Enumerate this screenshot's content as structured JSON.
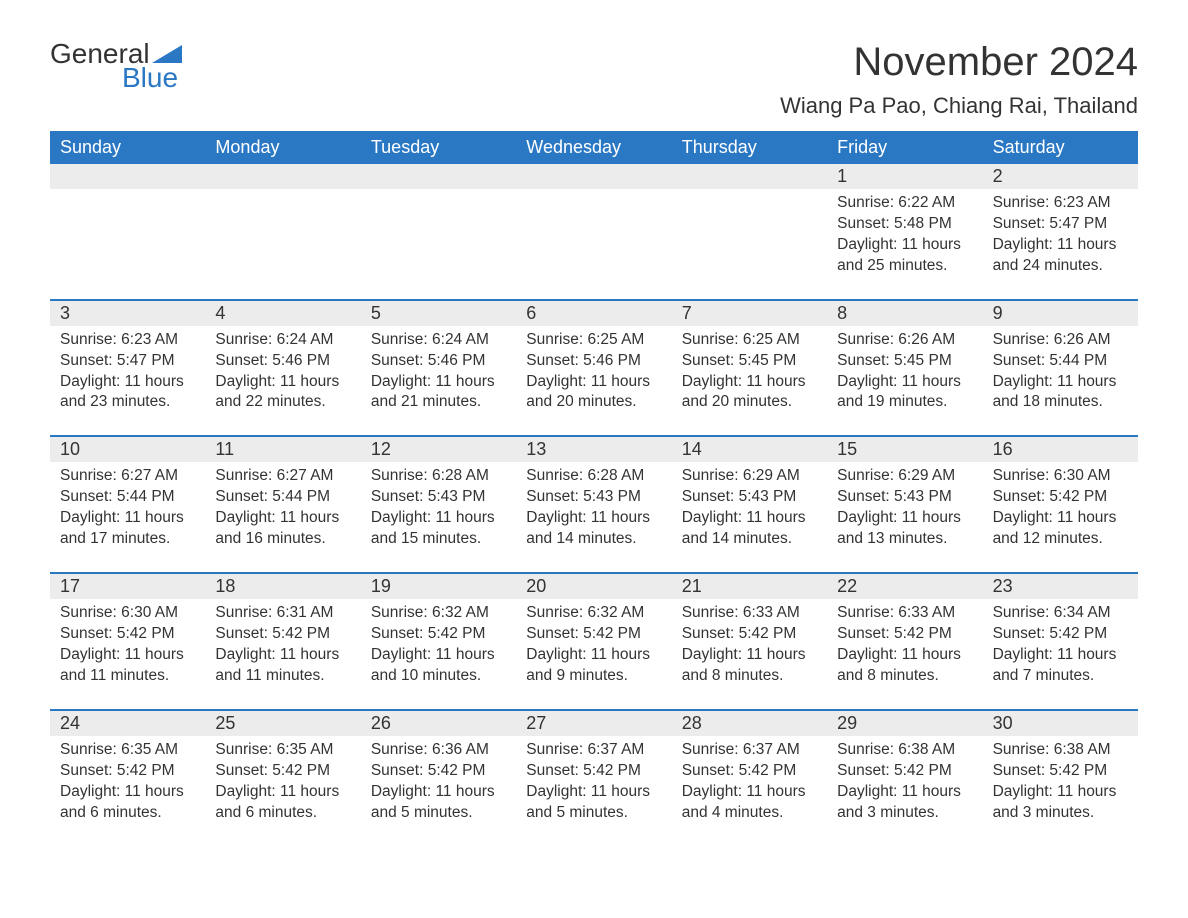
{
  "logo": {
    "word1": "General",
    "word2": "Blue",
    "shape_color": "#2a78c4",
    "text_color": "#333333"
  },
  "title": "November 2024",
  "location": "Wiang Pa Pao, Chiang Rai, Thailand",
  "colors": {
    "header_bg": "#2a78c4",
    "header_text": "#ffffff",
    "week_divider": "#2a78c4",
    "daynum_bg": "#ececec",
    "body_text": "#333333",
    "page_bg": "#ffffff"
  },
  "typography": {
    "title_fontsize": 40,
    "location_fontsize": 22,
    "dow_fontsize": 18,
    "daynum_fontsize": 18,
    "body_fontsize": 15.5,
    "font_family": "Arial"
  },
  "layout": {
    "columns": 7,
    "rows": 5,
    "first_day_column_index": 5
  },
  "days_of_week": [
    "Sunday",
    "Monday",
    "Tuesday",
    "Wednesday",
    "Thursday",
    "Friday",
    "Saturday"
  ],
  "labels": {
    "sunrise": "Sunrise:",
    "sunset": "Sunset:",
    "daylight": "Daylight:"
  },
  "days": [
    {
      "n": 1,
      "sunrise": "6:22 AM",
      "sunset": "5:48 PM",
      "daylight": "11 hours and 25 minutes."
    },
    {
      "n": 2,
      "sunrise": "6:23 AM",
      "sunset": "5:47 PM",
      "daylight": "11 hours and 24 minutes."
    },
    {
      "n": 3,
      "sunrise": "6:23 AM",
      "sunset": "5:47 PM",
      "daylight": "11 hours and 23 minutes."
    },
    {
      "n": 4,
      "sunrise": "6:24 AM",
      "sunset": "5:46 PM",
      "daylight": "11 hours and 22 minutes."
    },
    {
      "n": 5,
      "sunrise": "6:24 AM",
      "sunset": "5:46 PM",
      "daylight": "11 hours and 21 minutes."
    },
    {
      "n": 6,
      "sunrise": "6:25 AM",
      "sunset": "5:46 PM",
      "daylight": "11 hours and 20 minutes."
    },
    {
      "n": 7,
      "sunrise": "6:25 AM",
      "sunset": "5:45 PM",
      "daylight": "11 hours and 20 minutes."
    },
    {
      "n": 8,
      "sunrise": "6:26 AM",
      "sunset": "5:45 PM",
      "daylight": "11 hours and 19 minutes."
    },
    {
      "n": 9,
      "sunrise": "6:26 AM",
      "sunset": "5:44 PM",
      "daylight": "11 hours and 18 minutes."
    },
    {
      "n": 10,
      "sunrise": "6:27 AM",
      "sunset": "5:44 PM",
      "daylight": "11 hours and 17 minutes."
    },
    {
      "n": 11,
      "sunrise": "6:27 AM",
      "sunset": "5:44 PM",
      "daylight": "11 hours and 16 minutes."
    },
    {
      "n": 12,
      "sunrise": "6:28 AM",
      "sunset": "5:43 PM",
      "daylight": "11 hours and 15 minutes."
    },
    {
      "n": 13,
      "sunrise": "6:28 AM",
      "sunset": "5:43 PM",
      "daylight": "11 hours and 14 minutes."
    },
    {
      "n": 14,
      "sunrise": "6:29 AM",
      "sunset": "5:43 PM",
      "daylight": "11 hours and 14 minutes."
    },
    {
      "n": 15,
      "sunrise": "6:29 AM",
      "sunset": "5:43 PM",
      "daylight": "11 hours and 13 minutes."
    },
    {
      "n": 16,
      "sunrise": "6:30 AM",
      "sunset": "5:42 PM",
      "daylight": "11 hours and 12 minutes."
    },
    {
      "n": 17,
      "sunrise": "6:30 AM",
      "sunset": "5:42 PM",
      "daylight": "11 hours and 11 minutes."
    },
    {
      "n": 18,
      "sunrise": "6:31 AM",
      "sunset": "5:42 PM",
      "daylight": "11 hours and 11 minutes."
    },
    {
      "n": 19,
      "sunrise": "6:32 AM",
      "sunset": "5:42 PM",
      "daylight": "11 hours and 10 minutes."
    },
    {
      "n": 20,
      "sunrise": "6:32 AM",
      "sunset": "5:42 PM",
      "daylight": "11 hours and 9 minutes."
    },
    {
      "n": 21,
      "sunrise": "6:33 AM",
      "sunset": "5:42 PM",
      "daylight": "11 hours and 8 minutes."
    },
    {
      "n": 22,
      "sunrise": "6:33 AM",
      "sunset": "5:42 PM",
      "daylight": "11 hours and 8 minutes."
    },
    {
      "n": 23,
      "sunrise": "6:34 AM",
      "sunset": "5:42 PM",
      "daylight": "11 hours and 7 minutes."
    },
    {
      "n": 24,
      "sunrise": "6:35 AM",
      "sunset": "5:42 PM",
      "daylight": "11 hours and 6 minutes."
    },
    {
      "n": 25,
      "sunrise": "6:35 AM",
      "sunset": "5:42 PM",
      "daylight": "11 hours and 6 minutes."
    },
    {
      "n": 26,
      "sunrise": "6:36 AM",
      "sunset": "5:42 PM",
      "daylight": "11 hours and 5 minutes."
    },
    {
      "n": 27,
      "sunrise": "6:37 AM",
      "sunset": "5:42 PM",
      "daylight": "11 hours and 5 minutes."
    },
    {
      "n": 28,
      "sunrise": "6:37 AM",
      "sunset": "5:42 PM",
      "daylight": "11 hours and 4 minutes."
    },
    {
      "n": 29,
      "sunrise": "6:38 AM",
      "sunset": "5:42 PM",
      "daylight": "11 hours and 3 minutes."
    },
    {
      "n": 30,
      "sunrise": "6:38 AM",
      "sunset": "5:42 PM",
      "daylight": "11 hours and 3 minutes."
    }
  ]
}
